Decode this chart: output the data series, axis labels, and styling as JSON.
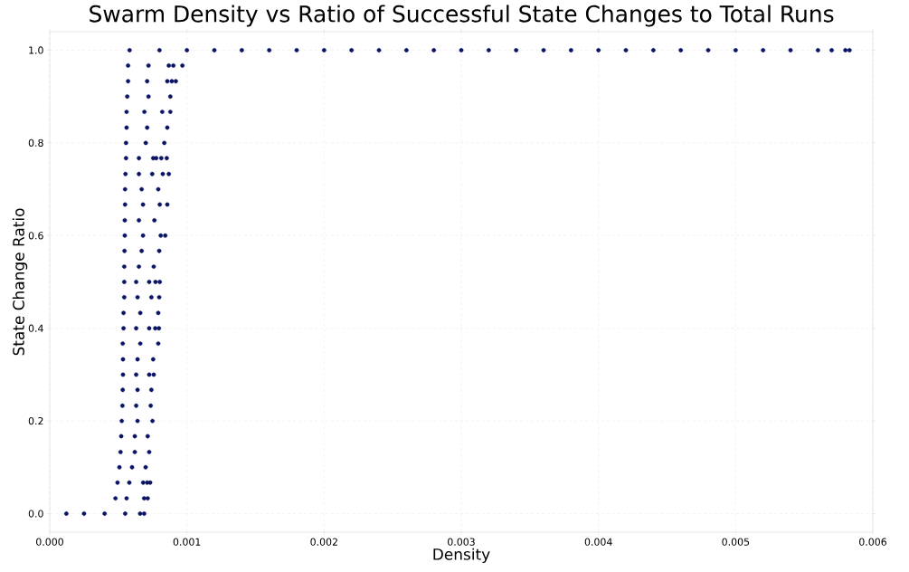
{
  "chart_data": {
    "type": "scatter",
    "title": "Swarm Density vs Ratio of Successful State Changes to Total Runs",
    "xlabel": "Density",
    "ylabel": "State Change Ratio",
    "xlim": [
      0,
      0.006
    ],
    "ylim": [
      -0.04,
      1.04
    ],
    "xticks": [
      {
        "value": 0,
        "label": "0.000"
      },
      {
        "value": 0.001,
        "label": "0.001"
      },
      {
        "value": 0.002,
        "label": "0.002"
      },
      {
        "value": 0.003,
        "label": "0.003"
      },
      {
        "value": 0.004,
        "label": "0.004"
      },
      {
        "value": 0.005,
        "label": "0.005"
      },
      {
        "value": 0.006,
        "label": "0.006"
      }
    ],
    "yticks": [
      {
        "value": 0,
        "label": "0.0"
      },
      0.2,
      0.4,
      0.6,
      0.8,
      {
        "value": 1,
        "label": "1.0"
      }
    ],
    "grid": true,
    "series": [
      {
        "color": "#0a1464",
        "x": [
          0.000121,
          0.00025,
          0.0004,
          0.00055,
          0.000659,
          0.000688
        ],
        "values": [
          0,
          0,
          0,
          0,
          0,
          0
        ]
      },
      {
        "color": "#0a1464",
        "x": [
          0.000479,
          0.00056,
          0.000688,
          0.000714
        ],
        "values": [
          0.033,
          0.033,
          0.033,
          0.033
        ]
      },
      {
        "color": "#0a1464",
        "x": [
          0.000494,
          0.00058,
          0.000681,
          0.00071,
          0.000732
        ],
        "values": [
          0.067,
          0.067,
          0.067,
          0.067,
          0.067
        ]
      },
      {
        "color": "#0a1464",
        "x": [
          0.000508,
          0.0006,
          0.000699
        ],
        "values": [
          0.1,
          0.1,
          0.1
        ]
      },
      {
        "color": "#0a1464",
        "x": [
          0.000516,
          0.00062,
          0.000725
        ],
        "values": [
          0.133,
          0.133,
          0.133
        ]
      },
      {
        "color": "#0a1464",
        "x": [
          0.000521,
          0.00062,
          0.000714
        ],
        "values": [
          0.167,
          0.167,
          0.167
        ]
      },
      {
        "color": "#0a1464",
        "x": [
          0.000525,
          0.00064,
          0.000749
        ],
        "values": [
          0.2,
          0.2,
          0.2
        ]
      },
      {
        "color": "#0a1464",
        "x": [
          0.00053,
          0.00063,
          0.000736
        ],
        "values": [
          0.233,
          0.233,
          0.233
        ]
      },
      {
        "color": "#0a1464",
        "x": [
          0.000532,
          0.00064,
          0.000741
        ],
        "values": [
          0.267,
          0.267,
          0.267
        ]
      },
      {
        "color": "#0a1464",
        "x": [
          0.000534,
          0.00063,
          0.000725,
          0.000758
        ],
        "values": [
          0.3,
          0.3,
          0.3,
          0.3
        ]
      },
      {
        "color": "#0a1464",
        "x": [
          0.000534,
          0.00064,
          0.000754
        ],
        "values": [
          0.333,
          0.333,
          0.333
        ]
      },
      {
        "color": "#0a1464",
        "x": [
          0.000532,
          0.00066,
          0.000791
        ],
        "values": [
          0.367,
          0.367,
          0.367
        ]
      },
      {
        "color": "#0a1464",
        "x": [
          0.000538,
          0.00063,
          0.000725,
          0.000769,
          0.000796
        ],
        "values": [
          0.4,
          0.4,
          0.4,
          0.4,
          0.4
        ]
      },
      {
        "color": "#0a1464",
        "x": [
          0.000538,
          0.00066,
          0.000791
        ],
        "values": [
          0.433,
          0.433,
          0.433
        ]
      },
      {
        "color": "#0a1464",
        "x": [
          0.000543,
          0.00064,
          0.000741,
          0.000798
        ],
        "values": [
          0.467,
          0.467,
          0.467,
          0.467
        ]
      },
      {
        "color": "#0a1464",
        "x": [
          0.000543,
          0.00063,
          0.000725,
          0.000771,
          0.000802
        ],
        "values": [
          0.5,
          0.5,
          0.5,
          0.5,
          0.5
        ]
      },
      {
        "color": "#0a1464",
        "x": [
          0.000543,
          0.00065,
          0.000758
        ],
        "values": [
          0.533,
          0.533,
          0.533
        ]
      },
      {
        "color": "#0a1464",
        "x": [
          0.000545,
          0.00067,
          0.000798
        ],
        "values": [
          0.567,
          0.567,
          0.567
        ]
      },
      {
        "color": "#0a1464",
        "x": [
          0.000547,
          0.00068,
          0.000809,
          0.000842
        ],
        "values": [
          0.6,
          0.6,
          0.6,
          0.6
        ]
      },
      {
        "color": "#0a1464",
        "x": [
          0.000547,
          0.00065,
          0.000763
        ],
        "values": [
          0.633,
          0.633,
          0.633
        ]
      },
      {
        "color": "#0a1464",
        "x": [
          0.000549,
          0.00068,
          0.000802,
          0.000857
        ],
        "values": [
          0.667,
          0.667,
          0.667,
          0.667
        ]
      },
      {
        "color": "#0a1464",
        "x": [
          0.000549,
          0.00067,
          0.000791
        ],
        "values": [
          0.7,
          0.7,
          0.7
        ]
      },
      {
        "color": "#0a1464",
        "x": [
          0.000552,
          0.00065,
          0.000747,
          0.000824,
          0.000868
        ],
        "values": [
          0.733,
          0.733,
          0.733,
          0.733,
          0.733
        ]
      },
      {
        "color": "#0a1464",
        "x": [
          0.000556,
          0.00065,
          0.000754,
          0.000776,
          0.000813,
          0.000853
        ],
        "values": [
          0.767,
          0.767,
          0.767,
          0.767,
          0.767,
          0.767
        ]
      },
      {
        "color": "#0a1464",
        "x": [
          0.000556,
          0.0007,
          0.000835
        ],
        "values": [
          0.8,
          0.8,
          0.8
        ]
      },
      {
        "color": "#0a1464",
        "x": [
          0.00056,
          0.00071,
          0.000857
        ],
        "values": [
          0.833,
          0.833,
          0.833
        ]
      },
      {
        "color": "#0a1464",
        "x": [
          0.00056,
          0.00069,
          0.00082,
          0.000879
        ],
        "values": [
          0.867,
          0.867,
          0.867,
          0.867
        ]
      },
      {
        "color": "#0a1464",
        "x": [
          0.000565,
          0.00072,
          0.000879
        ],
        "values": [
          0.9,
          0.9,
          0.9
        ]
      },
      {
        "color": "#0a1464",
        "x": [
          0.000571,
          0.00071,
          0.000857,
          0.00089,
          0.000919
        ],
        "values": [
          0.933,
          0.933,
          0.933,
          0.933,
          0.933
        ]
      },
      {
        "color": "#0a1464",
        "x": [
          0.000571,
          0.00072,
          0.000868,
          0.000901,
          0.000967
        ],
        "values": [
          0.967,
          0.967,
          0.967,
          0.967,
          0.967
        ]
      },
      {
        "color": "#0a1464",
        "x": [
          0.000582,
          0.0008,
          0.001,
          0.0012,
          0.0014,
          0.0016,
          0.0018,
          0.002,
          0.0022,
          0.0024,
          0.0026,
          0.0028,
          0.003,
          0.0032,
          0.0034,
          0.0036,
          0.0038,
          0.004,
          0.0042,
          0.0044,
          0.0046,
          0.0048,
          0.005,
          0.0052,
          0.0054,
          0.0056,
          0.0057,
          0.0058,
          0.00583
        ],
        "values": [
          1,
          1,
          1,
          1,
          1,
          1,
          1,
          1,
          1,
          1,
          1,
          1,
          1,
          1,
          1,
          1,
          1,
          1,
          1,
          1,
          1,
          1,
          1,
          1,
          1,
          1,
          1,
          1,
          1
        ]
      }
    ]
  }
}
